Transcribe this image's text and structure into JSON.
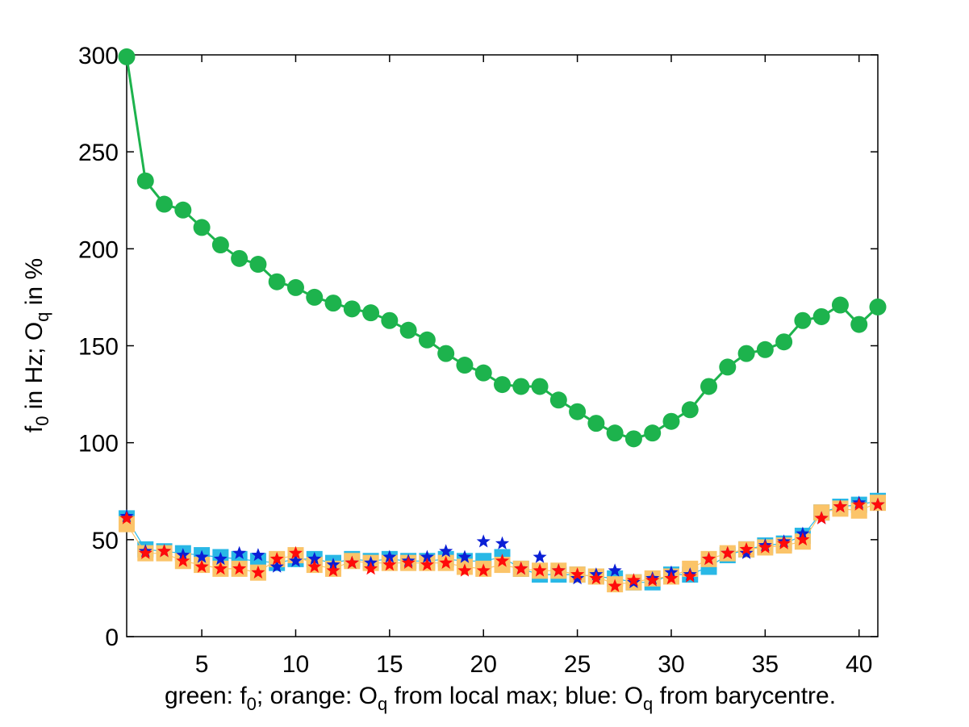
{
  "chart_data": {
    "type": "line",
    "xlim": [
      1,
      41
    ],
    "ylim": [
      0,
      300
    ],
    "x_ticks": [
      5,
      10,
      15,
      20,
      25,
      30,
      35,
      40
    ],
    "y_ticks": [
      0,
      50,
      100,
      150,
      200,
      250,
      300
    ],
    "grid": false,
    "legend": "none",
    "ylabel": {
      "part1": "f",
      "sub1": "0",
      "part2": " in Hz; O",
      "sub2": "q",
      "part3": " in %"
    },
    "xlabel": {
      "part1": "green: f",
      "sub1": "0",
      "part2": "; orange: O",
      "sub2": "q",
      "part3": " from local max; blue: O",
      "sub3": "q",
      "part4": " from barycentre."
    },
    "x": [
      1,
      2,
      3,
      4,
      5,
      6,
      7,
      8,
      9,
      10,
      11,
      12,
      13,
      14,
      15,
      16,
      17,
      18,
      19,
      20,
      21,
      22,
      23,
      24,
      25,
      26,
      27,
      28,
      29,
      30,
      31,
      32,
      33,
      34,
      35,
      36,
      37,
      38,
      39,
      40,
      41
    ],
    "series": [
      {
        "color": "#1db34d",
        "marker": "circle",
        "values": [
          299,
          235,
          223,
          220,
          211,
          202,
          195,
          192,
          183,
          180,
          175,
          172,
          169,
          167,
          163,
          158,
          153,
          146,
          140,
          136,
          130,
          129,
          129,
          122,
          116,
          110,
          105,
          102,
          105,
          111,
          117,
          129,
          139,
          146,
          148,
          152,
          163,
          165,
          171,
          161,
          170
        ]
      },
      {
        "color": "#29b8e6",
        "marker": "square",
        "values": [
          61,
          45,
          44,
          43,
          42,
          41,
          40,
          39,
          38,
          40,
          40,
          38,
          40,
          39,
          40,
          39,
          39,
          40,
          39,
          39,
          41,
          35,
          32,
          32,
          32,
          31,
          30,
          28,
          28,
          32,
          32,
          36,
          42,
          45,
          47,
          48,
          52,
          64,
          67,
          68,
          70
        ]
      },
      {
        "color": "#fbc469",
        "marker": "square",
        "values": [
          58,
          43,
          43,
          39,
          37,
          35,
          35,
          33,
          40,
          42,
          37,
          35,
          39,
          38,
          38,
          38,
          38,
          38,
          36,
          35,
          37,
          35,
          34,
          34,
          32,
          31,
          27,
          28,
          30,
          31,
          35,
          40,
          43,
          45,
          46,
          47,
          49,
          64,
          66,
          65,
          69
        ]
      },
      {
        "color": "#0a1fd6",
        "marker": "star",
        "values": [
          62,
          44,
          44,
          42,
          41,
          40,
          43,
          42,
          36,
          39,
          40,
          37,
          38,
          38,
          41,
          39,
          41,
          44,
          41,
          49,
          48,
          35,
          41,
          34,
          30,
          32,
          34,
          28,
          30,
          33,
          32,
          40,
          43,
          43,
          47,
          49,
          53,
          61,
          67,
          69,
          68
        ]
      },
      {
        "color": "#ff0a0a",
        "marker": "star",
        "values": [
          61,
          43,
          44,
          39,
          36,
          35,
          35,
          33,
          40,
          43,
          36,
          34,
          38,
          35,
          37,
          38,
          37,
          38,
          34,
          34,
          39,
          35,
          34,
          34,
          32,
          30,
          26,
          29,
          29,
          30,
          31,
          40,
          43,
          45,
          46,
          48,
          50,
          61,
          67,
          68,
          68
        ]
      }
    ]
  }
}
